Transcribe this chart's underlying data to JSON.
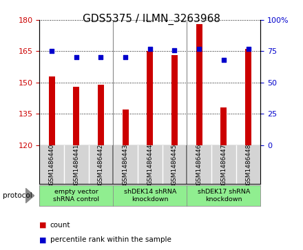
{
  "title": "GDS5375 / ILMN_3263968",
  "samples": [
    "GSM1486440",
    "GSM1486441",
    "GSM1486442",
    "GSM1486443",
    "GSM1486444",
    "GSM1486445",
    "GSM1486446",
    "GSM1486447",
    "GSM1486448"
  ],
  "counts": [
    153,
    148,
    149,
    137,
    165,
    163,
    178,
    138,
    166
  ],
  "percentiles": [
    75,
    70,
    70,
    70,
    77,
    76,
    77,
    68,
    77
  ],
  "ylim_left": [
    120,
    180
  ],
  "ylim_right": [
    0,
    100
  ],
  "yticks_left": [
    120,
    135,
    150,
    165,
    180
  ],
  "yticks_right": [
    0,
    25,
    50,
    75,
    100
  ],
  "bar_color": "#cc0000",
  "dot_color": "#0000cc",
  "protocol_groups": [
    {
      "label": "empty vector\nshRNA control",
      "start": 0,
      "end": 3,
      "color": "#90ee90"
    },
    {
      "label": "shDEK14 shRNA\nknockdown",
      "start": 3,
      "end": 6,
      "color": "#90ee90"
    },
    {
      "label": "shDEK17 shRNA\nknockdown",
      "start": 6,
      "end": 9,
      "color": "#90ee90"
    }
  ],
  "legend_count_label": "count",
  "legend_percentile_label": "percentile rank within the sample",
  "protocol_label": "protocol",
  "title_fontsize": 11,
  "tick_fontsize": 8,
  "sample_fontsize": 6.5
}
